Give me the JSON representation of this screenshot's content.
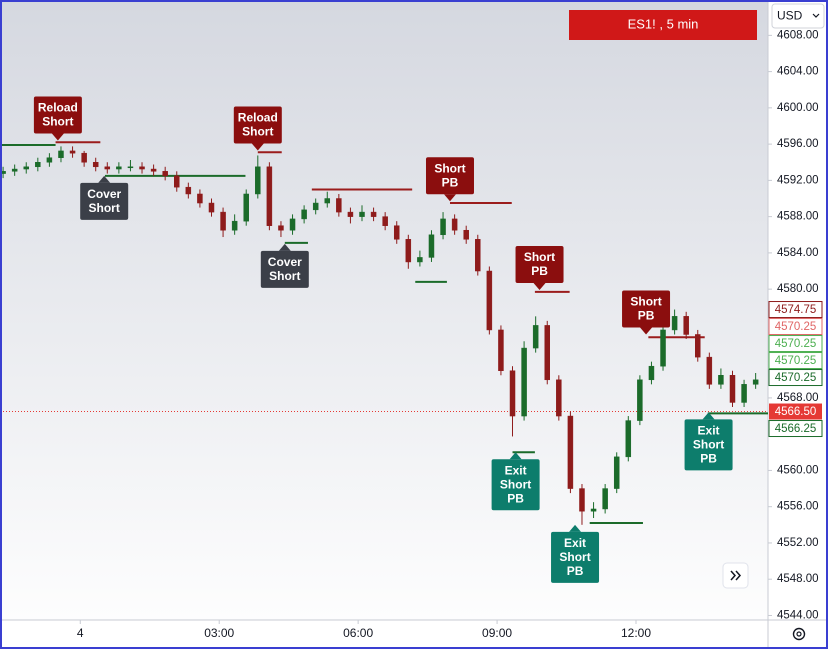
{
  "chart_data": {
    "type": "candlestick",
    "title": "ES1! , 5 min",
    "currency": "USD",
    "xlim": [
      -104,
      891
    ],
    "ylim": [
      4543.5,
      4611.9
    ],
    "xticks": [
      {
        "value": 0,
        "label": "4"
      },
      {
        "value": 180,
        "label": "03:00"
      },
      {
        "value": 360,
        "label": "06:00"
      },
      {
        "value": 540,
        "label": "09:00"
      },
      {
        "value": 720,
        "label": "12:00"
      }
    ],
    "yticks": [
      {
        "value": 4544,
        "label": "4544.00"
      },
      {
        "value": 4548,
        "label": "4548.00"
      },
      {
        "value": 4552,
        "label": "4552.00"
      },
      {
        "value": 4556,
        "label": "4556.00"
      },
      {
        "value": 4560,
        "label": "4560.00"
      },
      {
        "value": 4564,
        "label": "4564.00"
      },
      {
        "value": 4568,
        "label": "4568.00"
      },
      {
        "value": 4572,
        "label": "4572.00"
      },
      {
        "value": 4576,
        "label": "4576.00"
      },
      {
        "value": 4580,
        "label": "4580.00"
      },
      {
        "value": 4584,
        "label": "4584.00"
      },
      {
        "value": 4588,
        "label": "4588.00"
      },
      {
        "value": 4592,
        "label": "4592.00"
      },
      {
        "value": 4596,
        "label": "4596.00"
      },
      {
        "value": 4600,
        "label": "4600.00"
      },
      {
        "value": 4604,
        "label": "4604.00"
      },
      {
        "value": 4608,
        "label": "4608.00"
      }
    ],
    "up_color": "#1b6b2a",
    "down_color": "#8e1b1b",
    "x": [
      -100,
      -85,
      -70,
      -55,
      -40,
      -25,
      -10,
      5,
      20,
      35,
      50,
      65,
      80,
      95,
      110,
      125,
      140,
      155,
      170,
      185,
      200,
      215,
      230,
      245,
      260,
      275,
      290,
      305,
      320,
      335,
      350,
      365,
      380,
      395,
      410,
      425,
      440,
      455,
      470,
      485,
      500,
      515,
      530,
      545,
      560,
      575,
      590,
      605,
      620,
      635,
      650,
      665,
      680,
      695,
      710,
      725,
      740,
      755,
      770,
      785,
      800,
      815,
      830,
      845,
      860,
      875
    ],
    "ohlc": [
      [
        4592.75,
        4593.5,
        4592.25,
        4593.0
      ],
      [
        4593.0,
        4593.75,
        4592.5,
        4593.25
      ],
      [
        4593.25,
        4594.0,
        4592.75,
        4593.5
      ],
      [
        4593.5,
        4594.5,
        4593.0,
        4594.0
      ],
      [
        4594.0,
        4595.0,
        4593.5,
        4594.5
      ],
      [
        4594.5,
        4595.75,
        4594.0,
        4595.25
      ],
      [
        4595.25,
        4595.75,
        4594.5,
        4595.0
      ],
      [
        4595.0,
        4595.25,
        4593.5,
        4594.0
      ],
      [
        4594.0,
        4594.5,
        4593.0,
        4593.5
      ],
      [
        4593.5,
        4594.0,
        4592.75,
        4593.25
      ],
      [
        4593.25,
        4594.0,
        4592.75,
        4593.5
      ],
      [
        4593.5,
        4594.25,
        4593.0,
        4593.5
      ],
      [
        4593.5,
        4594.0,
        4592.75,
        4593.25
      ],
      [
        4593.25,
        4593.75,
        4592.5,
        4593.0
      ],
      [
        4593.0,
        4593.5,
        4592.0,
        4592.5
      ],
      [
        4592.5,
        4593.0,
        4590.75,
        4591.25
      ],
      [
        4591.25,
        4591.75,
        4590.0,
        4590.5
      ],
      [
        4590.5,
        4591.0,
        4589.0,
        4589.5
      ],
      [
        4589.5,
        4590.0,
        4588.0,
        4588.5
      ],
      [
        4588.5,
        4589.0,
        4585.75,
        4586.5
      ],
      [
        4586.5,
        4588.25,
        4586.0,
        4587.5
      ],
      [
        4587.5,
        4591.0,
        4587.0,
        4590.5
      ],
      [
        4590.5,
        4594.75,
        4590.0,
        4593.5
      ],
      [
        4593.5,
        4594.0,
        4586.5,
        4587.0
      ],
      [
        4587.0,
        4587.5,
        4585.75,
        4586.5
      ],
      [
        4586.5,
        4588.25,
        4586.0,
        4587.75
      ],
      [
        4587.75,
        4589.25,
        4587.25,
        4588.75
      ],
      [
        4588.75,
        4590.0,
        4588.25,
        4589.5
      ],
      [
        4589.5,
        4590.75,
        4589.0,
        4590.0
      ],
      [
        4590.0,
        4590.5,
        4588.0,
        4588.5
      ],
      [
        4588.5,
        4589.0,
        4587.25,
        4588.0
      ],
      [
        4588.0,
        4589.25,
        4587.5,
        4588.5
      ],
      [
        4588.5,
        4589.0,
        4587.5,
        4588.0
      ],
      [
        4588.0,
        4588.5,
        4586.5,
        4587.0
      ],
      [
        4587.0,
        4587.5,
        4585.0,
        4585.5
      ],
      [
        4585.5,
        4586.0,
        4582.25,
        4583.0
      ],
      [
        4583.0,
        4584.25,
        4582.5,
        4583.5
      ],
      [
        4583.5,
        4586.5,
        4583.0,
        4586.0
      ],
      [
        4586.0,
        4588.5,
        4585.5,
        4587.75
      ],
      [
        4587.75,
        4588.25,
        4586.0,
        4586.5
      ],
      [
        4586.5,
        4587.0,
        4585.0,
        4585.5
      ],
      [
        4585.5,
        4586.0,
        4581.5,
        4582.0
      ],
      [
        4582.0,
        4582.5,
        4575.0,
        4575.5
      ],
      [
        4575.5,
        4576.0,
        4570.5,
        4571.0
      ],
      [
        4571.0,
        4571.5,
        4563.75,
        4566.0
      ],
      [
        4566.0,
        4574.25,
        4565.5,
        4573.5
      ],
      [
        4573.5,
        4577.0,
        4573.0,
        4576.0
      ],
      [
        4576.0,
        4576.5,
        4569.5,
        4570.0
      ],
      [
        4570.0,
        4570.5,
        4565.5,
        4566.0
      ],
      [
        4566.0,
        4566.5,
        4557.5,
        4558.0
      ],
      [
        4558.0,
        4558.5,
        4554.0,
        4555.5
      ],
      [
        4555.5,
        4556.5,
        4554.75,
        4555.75
      ],
      [
        4555.75,
        4558.5,
        4555.25,
        4558.0
      ],
      [
        4558.0,
        4562.0,
        4557.5,
        4561.5
      ],
      [
        4561.5,
        4566.0,
        4561.0,
        4565.5
      ],
      [
        4565.5,
        4570.5,
        4565.0,
        4570.0
      ],
      [
        4570.0,
        4572.0,
        4569.5,
        4571.5
      ],
      [
        4571.5,
        4576.0,
        4571.0,
        4575.5
      ],
      [
        4575.5,
        4577.75,
        4575.0,
        4577.0
      ],
      [
        4577.0,
        4577.5,
        4574.5,
        4575.0
      ],
      [
        4575.0,
        4575.5,
        4572.0,
        4572.5
      ],
      [
        4572.5,
        4573.0,
        4569.0,
        4569.5
      ],
      [
        4569.5,
        4571.25,
        4569.0,
        4570.5
      ],
      [
        4570.5,
        4571.0,
        4567.0,
        4567.5
      ],
      [
        4567.5,
        4570.0,
        4567.0,
        4569.5
      ],
      [
        4569.5,
        4570.75,
        4569.0,
        4570.0
      ]
    ],
    "levels": [
      {
        "price": 4595.9,
        "from": -104,
        "to": -32,
        "color": "#1b6b2a"
      },
      {
        "price": 4596.2,
        "from": -32,
        "to": 26,
        "color": "#9b1c1c"
      },
      {
        "price": 4592.5,
        "from": 32,
        "to": 214,
        "color": "#1b6b2a"
      },
      {
        "price": 4595.1,
        "from": 230,
        "to": 261,
        "color": "#9b1c1c"
      },
      {
        "price": 4585.1,
        "from": 265,
        "to": 295,
        "color": "#1b6b2a"
      },
      {
        "price": 4591.0,
        "from": 300,
        "to": 430,
        "color": "#9b1c1c"
      },
      {
        "price": 4589.5,
        "from": 479,
        "to": 559,
        "color": "#9b1c1c"
      },
      {
        "price": 4580.8,
        "from": 434,
        "to": 475,
        "color": "#1b6b2a"
      },
      {
        "price": 4579.7,
        "from": 589,
        "to": 634,
        "color": "#9b1c1c"
      },
      {
        "price": 4562.0,
        "from": 560,
        "to": 589,
        "color": "#1b6b2a"
      },
      {
        "price": 4554.2,
        "from": 660,
        "to": 729,
        "color": "#1b6b2a"
      },
      {
        "price": 4574.7,
        "from": 736,
        "to": 809,
        "color": "#9b1c1c"
      },
      {
        "price": 4566.3,
        "from": 813,
        "to": 891,
        "color": "#1b6b2a"
      }
    ],
    "signals": [
      {
        "text": [
          "Reload",
          "Short"
        ],
        "x": -29,
        "price": 4596.4,
        "placement": "above",
        "color": "#8b0e0e"
      },
      {
        "text": [
          "Cover",
          "Short"
        ],
        "x": 31,
        "price": 4592.5,
        "placement": "below",
        "color": "#3b3f48"
      },
      {
        "text": [
          "Reload",
          "Short"
        ],
        "x": 230,
        "price": 4595.3,
        "placement": "above",
        "color": "#8b0e0e"
      },
      {
        "text": [
          "Cover",
          "Short"
        ],
        "x": 265,
        "price": 4585.0,
        "placement": "below",
        "color": "#3b3f48"
      },
      {
        "text": [
          "Short",
          "PB"
        ],
        "x": 479,
        "price": 4589.7,
        "placement": "above",
        "color": "#8b0e0e"
      },
      {
        "text": [
          "Short",
          "PB"
        ],
        "x": 595,
        "price": 4579.9,
        "placement": "above",
        "color": "#8b0e0e"
      },
      {
        "text": [
          "Short",
          "PB"
        ],
        "x": 733,
        "price": 4575.0,
        "placement": "above",
        "color": "#8b0e0e"
      },
      {
        "text": [
          "Exit",
          "Short",
          "PB"
        ],
        "x": 564,
        "price": 4562.0,
        "placement": "below",
        "color": "#0d7d6c"
      },
      {
        "text": [
          "Exit",
          "Short",
          "PB"
        ],
        "x": 641,
        "price": 4554.0,
        "placement": "below",
        "color": "#0d7d6c"
      },
      {
        "text": [
          "Exit",
          "Short",
          "PB"
        ],
        "x": 814,
        "price": 4566.4,
        "placement": "below",
        "color": "#0d7d6c"
      }
    ],
    "price_tags": [
      {
        "value": 4574.75,
        "color": "#8e1b1b"
      },
      {
        "value": 4570.25,
        "color": "#e06666"
      },
      {
        "value": 4570.25,
        "color": "#4caf50"
      },
      {
        "value": 4570.25,
        "color": "#4caf50"
      },
      {
        "value": 4570.25,
        "color": "#1b6b2a"
      },
      {
        "value": 4566.25,
        "color": "#1b6b2a"
      }
    ],
    "last_price": {
      "value": 4566.5,
      "label": "4566.50",
      "color": "#e53935"
    }
  }
}
